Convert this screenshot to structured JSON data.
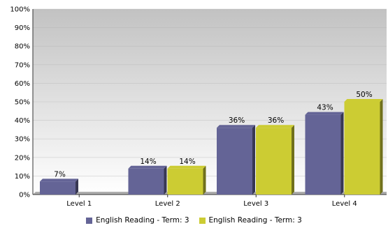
{
  "chart_data": {
    "type": "bar",
    "title": "",
    "xlabel": "",
    "ylabel": "",
    "categories": [
      "Level 1",
      "Level 2",
      "Level 3",
      "Level 4"
    ],
    "series": [
      {
        "name": "English Reading - Term: 3",
        "values": [
          7,
          14,
          36,
          43
        ],
        "labels": [
          "7%",
          "14%",
          "36%",
          "43%"
        ]
      },
      {
        "name": "English Reading - Term: 3",
        "values": [
          0,
          14,
          36,
          50
        ],
        "labels": [
          "",
          "14%",
          "36%",
          "50%"
        ]
      }
    ],
    "ylim": [
      0,
      100
    ],
    "yticks": [
      "0%",
      "10%",
      "20%",
      "30%",
      "40%",
      "50%",
      "60%",
      "70%",
      "80%",
      "90%",
      "100%"
    ],
    "grid": true,
    "legend_position": "bottom",
    "colors": {
      "series1": "#646496",
      "series2": "#cccc33",
      "plot_bg_top": "#c2c2c2",
      "plot_bg_bottom": "#ffffff"
    }
  }
}
